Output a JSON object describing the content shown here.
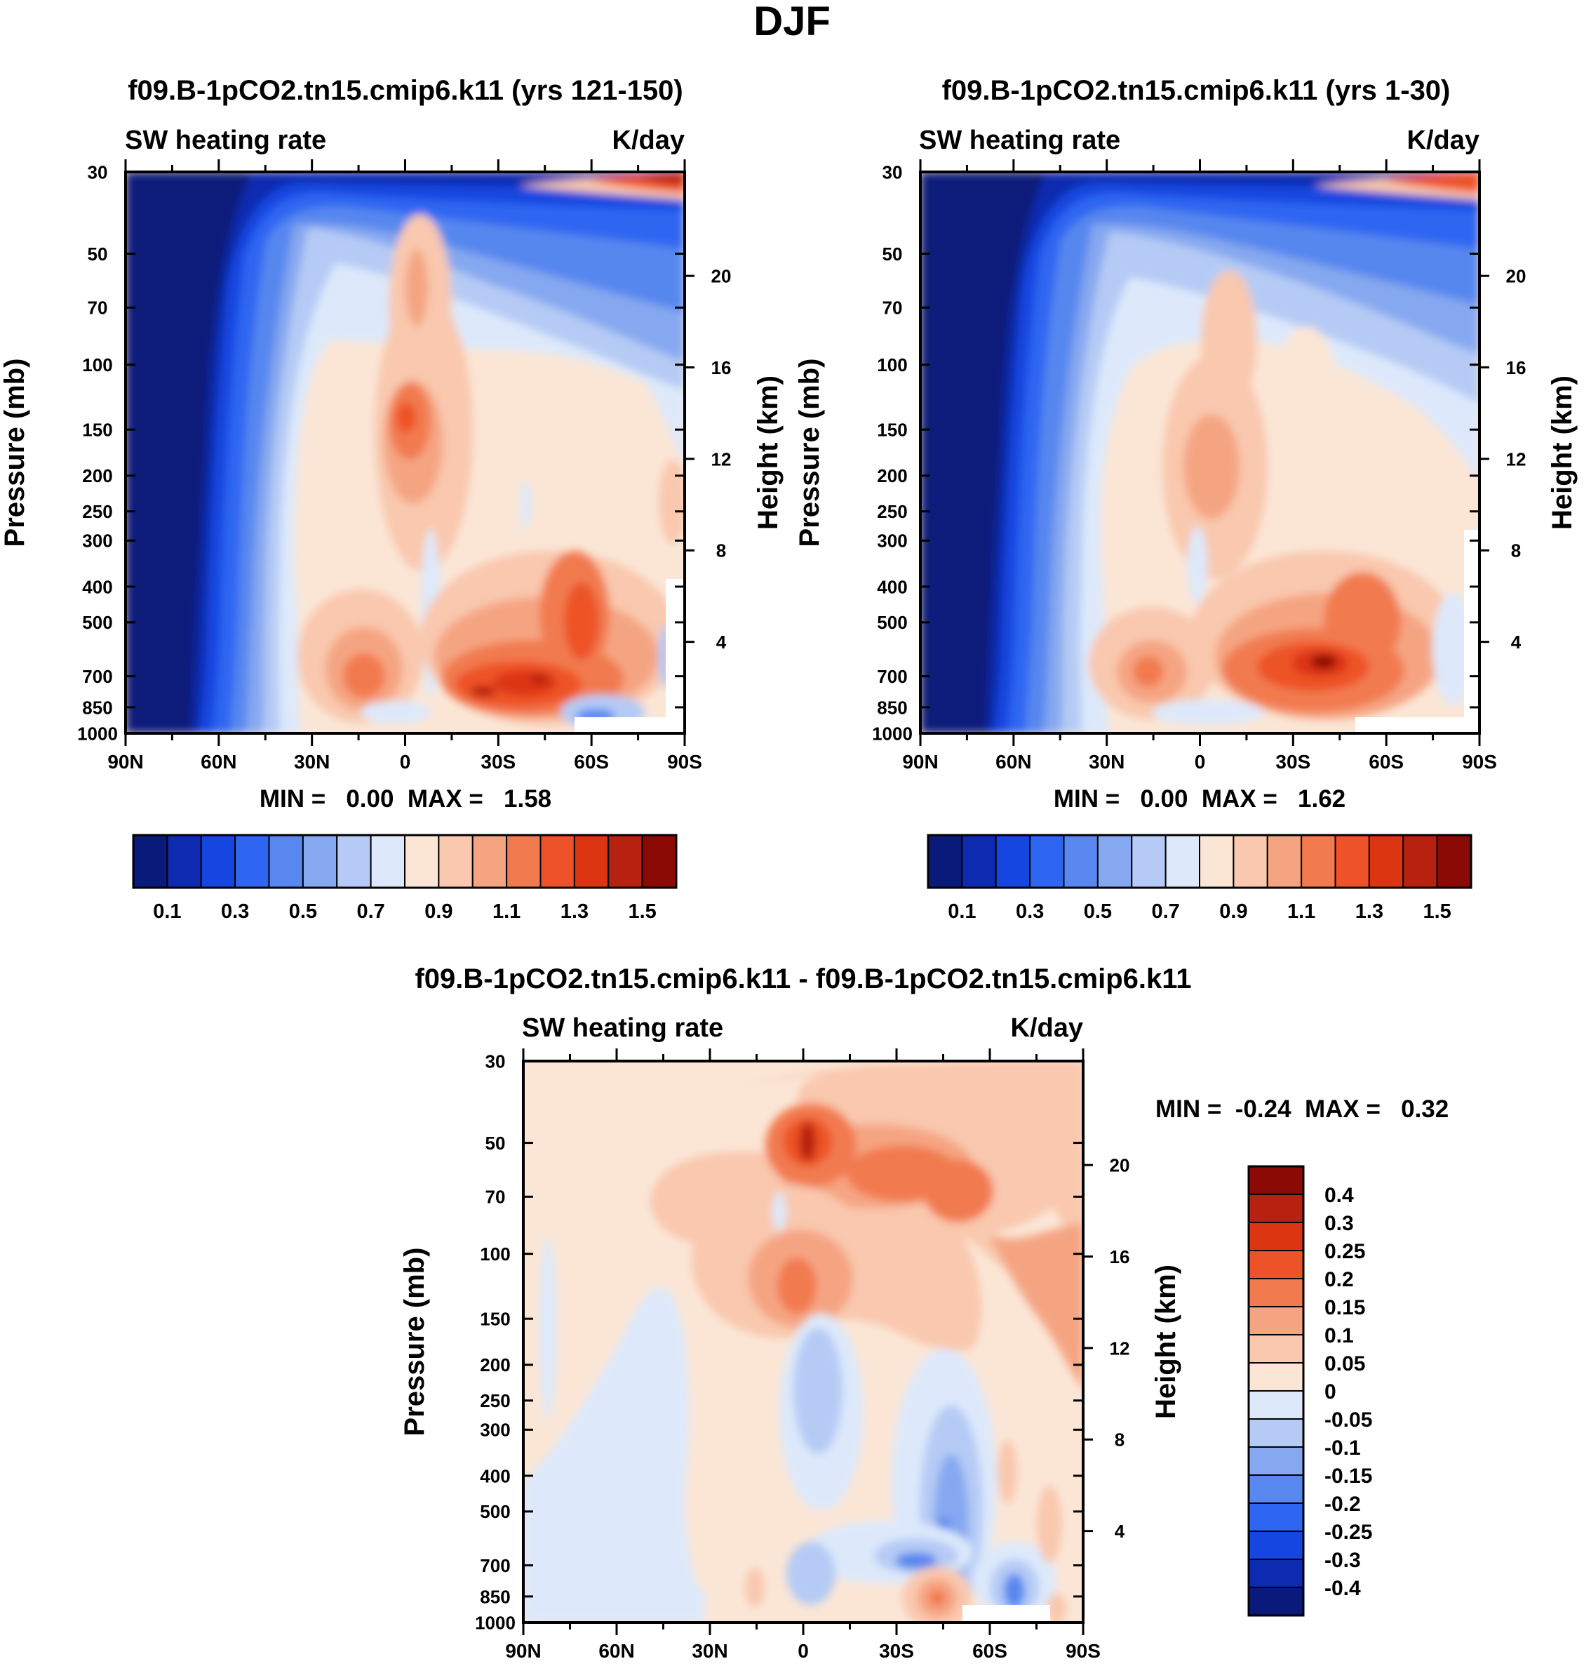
{
  "season_title": "DJF",
  "panels": [
    {
      "id": "p1",
      "title": "f09.B-1pCO2.tn15.cmip6.k11 (yrs 121-150)",
      "left_label": "SW heating rate",
      "right_label": "K/day",
      "stats": "MIN =   0.00  MAX =   1.58",
      "min": 0.0,
      "max": 1.58
    },
    {
      "id": "p2",
      "title": "f09.B-1pCO2.tn15.cmip6.k11 (yrs 1-30)",
      "left_label": "SW heating rate",
      "right_label": "K/day",
      "stats": "MIN =   0.00  MAX =   1.62",
      "min": 0.0,
      "max": 1.62
    },
    {
      "id": "p3",
      "title": "f09.B-1pCO2.tn15.cmip6.k11 - f09.B-1pCO2.tn15.cmip6.k11",
      "left_label": "SW heating rate",
      "right_label": "K/day",
      "stats": "MIN =  -0.24  MAX =   0.32",
      "min": -0.24,
      "max": 0.32
    }
  ],
  "axes": {
    "ylabel": "Pressure (mb)",
    "y2label": "Height (km)",
    "pressure_ticks": [
      30,
      50,
      70,
      100,
      150,
      200,
      250,
      300,
      400,
      500,
      700,
      850,
      1000
    ],
    "pressure_tick_labels": [
      "30",
      "50",
      "70",
      "100",
      "150",
      "200",
      "250",
      "300",
      "400",
      "500",
      "700",
      "850",
      "1000"
    ],
    "height_ticks_km": [
      20,
      16,
      12,
      8,
      4
    ],
    "height_tick_labels": [
      "20",
      "16",
      "12",
      "8",
      "4"
    ],
    "lat_ticks": [
      90,
      60,
      30,
      0,
      -30,
      -60,
      -90
    ],
    "lat_tick_labels": [
      "90N",
      "60N",
      "30N",
      "0",
      "30S",
      "60S",
      "90S"
    ]
  },
  "colorbars": {
    "abs": {
      "colors": [
        "#0a1a7a",
        "#0c2bb0",
        "#1546e0",
        "#2e66f2",
        "#5787ef",
        "#86a8f0",
        "#b5cbf5",
        "#dde9fb",
        "#fbe6d6",
        "#f9c8ae",
        "#f5a482",
        "#f27a4f",
        "#ee5228",
        "#dc3512",
        "#b72110",
        "#8b0a06"
      ],
      "labels": [
        "0.1",
        "0.3",
        "0.5",
        "0.7",
        "0.9",
        "1.1",
        "1.3",
        "1.5"
      ]
    },
    "diff": {
      "colors": [
        "#8b0a06",
        "#b72110",
        "#dc3512",
        "#ee5228",
        "#f27a4f",
        "#f5a482",
        "#f9c8ae",
        "#fbe6d6",
        "#dde9fb",
        "#b5cbf5",
        "#86a8f0",
        "#5787ef",
        "#2e66f2",
        "#1546e0",
        "#0c2bb0",
        "#0a1a7a"
      ],
      "labels": [
        "0.4",
        "0.3",
        "0.25",
        "0.2",
        "0.15",
        "0.1",
        "0.05",
        "0",
        "-0.05",
        "-0.1",
        "-0.15",
        "-0.2",
        "-0.25",
        "-0.3",
        "-0.4"
      ]
    }
  },
  "chart_data": [
    {
      "type": "heatmap",
      "title": "f09.B-1pCO2.tn15.cmip6.k11 (yrs 121-150)",
      "variable": "SW heating rate",
      "units": "K/day",
      "xlabel": "",
      "ylabel": "Pressure (mb)",
      "y2label": "Height (km)",
      "x": [
        "90N",
        "60N",
        "30N",
        "0",
        "30S",
        "60S",
        "90S"
      ],
      "levels": [
        0.1,
        0.2,
        0.3,
        0.4,
        0.5,
        0.6,
        0.7,
        0.8,
        0.9,
        1.0,
        1.1,
        1.2,
        1.3,
        1.4,
        1.5
      ],
      "min": 0.0,
      "max": 1.58
    },
    {
      "type": "heatmap",
      "title": "f09.B-1pCO2.tn15.cmip6.k11 (yrs 1-30)",
      "variable": "SW heating rate",
      "units": "K/day",
      "xlabel": "",
      "ylabel": "Pressure (mb)",
      "y2label": "Height (km)",
      "x": [
        "90N",
        "60N",
        "30N",
        "0",
        "30S",
        "60S",
        "90S"
      ],
      "levels": [
        0.1,
        0.2,
        0.3,
        0.4,
        0.5,
        0.6,
        0.7,
        0.8,
        0.9,
        1.0,
        1.1,
        1.2,
        1.3,
        1.4,
        1.5
      ],
      "min": 0.0,
      "max": 1.62
    },
    {
      "type": "heatmap",
      "title": "f09.B-1pCO2.tn15.cmip6.k11 - f09.B-1pCO2.tn15.cmip6.k11",
      "variable": "SW heating rate",
      "units": "K/day",
      "xlabel": "",
      "ylabel": "Pressure (mb)",
      "y2label": "Height (km)",
      "x": [
        "90N",
        "60N",
        "30N",
        "0",
        "30S",
        "60S",
        "90S"
      ],
      "levels": [
        -0.4,
        -0.3,
        -0.25,
        -0.2,
        -0.15,
        -0.1,
        -0.05,
        0,
        0.05,
        0.1,
        0.15,
        0.2,
        0.25,
        0.3,
        0.4
      ],
      "min": -0.24,
      "max": 0.32
    }
  ]
}
